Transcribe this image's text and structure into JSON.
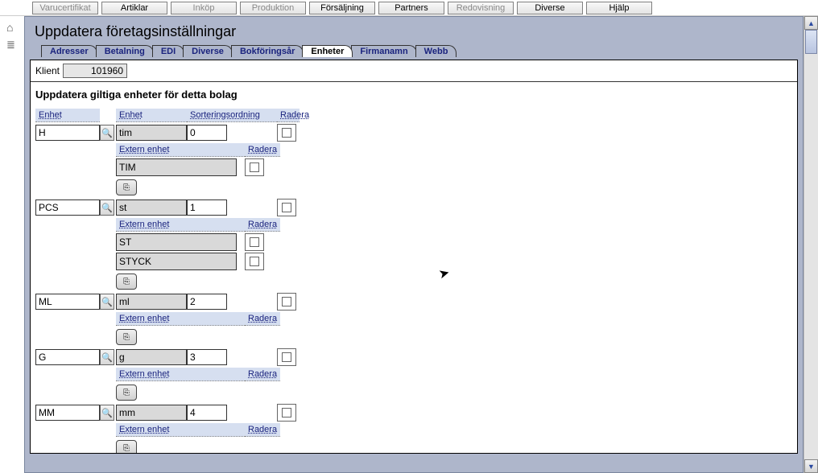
{
  "topmenu": [
    {
      "label": "Varucertifikat",
      "disabled": true
    },
    {
      "label": "Artiklar",
      "disabled": false
    },
    {
      "label": "Inköp",
      "disabled": true
    },
    {
      "label": "Produktion",
      "disabled": true
    },
    {
      "label": "Försäljning",
      "disabled": false
    },
    {
      "label": "Partners",
      "disabled": false
    },
    {
      "label": "Redovisning",
      "disabled": true
    },
    {
      "label": "Diverse",
      "disabled": false
    },
    {
      "label": "Hjälp",
      "disabled": false
    }
  ],
  "page": {
    "title": "Uppdatera företagsinställningar",
    "klient_label": "Klient",
    "klient_value": "101960",
    "section_title": "Uppdatera giltiga enheter för detta bolag"
  },
  "tabs": [
    {
      "label": "Adresser",
      "active": false
    },
    {
      "label": "Betalning",
      "active": false
    },
    {
      "label": "EDI",
      "active": false
    },
    {
      "label": "Diverse",
      "active": false
    },
    {
      "label": "Bokföringsår",
      "active": false
    },
    {
      "label": "Enheter",
      "active": true
    },
    {
      "label": "Firmanamn",
      "active": false
    },
    {
      "label": "Webb",
      "active": false
    }
  ],
  "grid": {
    "headers": {
      "enhet_code": "Enhet",
      "enhet_name": "Enhet",
      "sort": "Sorteringsordning",
      "radera": "Radera",
      "extern_enhet": "Extern enhet"
    },
    "rows": [
      {
        "code": "H",
        "name": "tim",
        "sort": "0",
        "exts": [
          "TIM"
        ]
      },
      {
        "code": "PCS",
        "name": "st",
        "sort": "1",
        "exts": [
          "ST",
          "STYCK"
        ]
      },
      {
        "code": "ML",
        "name": "ml",
        "sort": "2",
        "exts": []
      },
      {
        "code": "G",
        "name": "g",
        "sort": "3",
        "exts": []
      },
      {
        "code": "MM",
        "name": "mm",
        "sort": "4",
        "exts": []
      }
    ]
  },
  "colors": {
    "panel_bg": "#aeb6cb",
    "header_cell_bg": "#d6dff0",
    "readonly_bg": "#d9d9d9",
    "link_color": "#1a237e"
  }
}
